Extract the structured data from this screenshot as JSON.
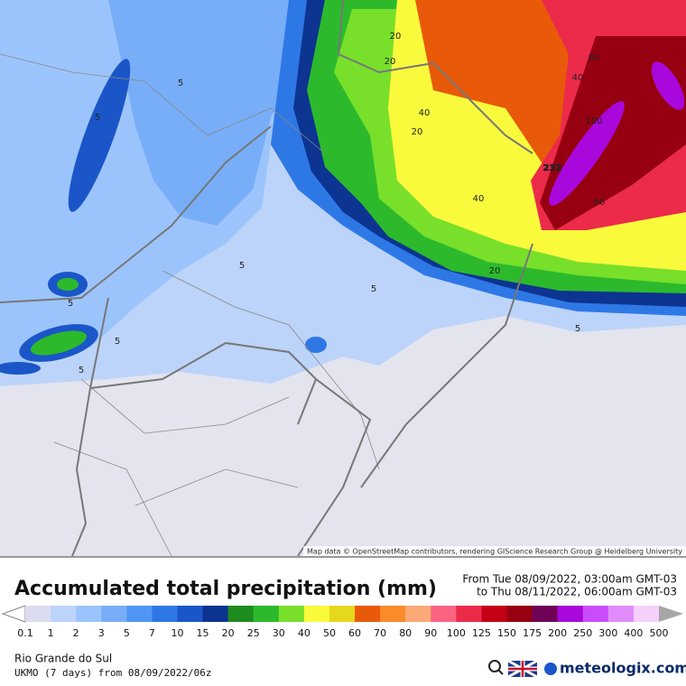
{
  "map": {
    "attribution": "Map data © OpenStreetMap contributors, rendering GIScience Research Group @ Heidelberg University",
    "contour_labels": [
      20,
      20,
      40,
      40,
      80,
      100,
      232,
      60,
      40,
      20,
      5,
      5,
      5,
      5,
      5,
      5,
      5,
      20,
      5
    ]
  },
  "header": {
    "title": "Accumulated total precipitation (mm)",
    "from": "From Tue 08/09/2022, 03:00am GMT-03",
    "to": "to Thu 08/11/2022, 06:00am GMT-03"
  },
  "legend": {
    "ticks": [
      0.1,
      1,
      2,
      3,
      5,
      7,
      10,
      15,
      20,
      25,
      30,
      40,
      50,
      60,
      70,
      80,
      90,
      100,
      125,
      150,
      175,
      200,
      250,
      300,
      400,
      500
    ],
    "colors": [
      "#dcdcf0",
      "#bcd4fa",
      "#9cc4fc",
      "#78aef8",
      "#5096f4",
      "#2e78e6",
      "#1a56c8",
      "#0c3490",
      "#1e8c1e",
      "#2cba2c",
      "#78e02a",
      "#fafa3c",
      "#e6d81c",
      "#e85a0a",
      "#fa8a2a",
      "#fcaa78",
      "#fa6482",
      "#ec2a4a",
      "#c40016",
      "#960010",
      "#6e0058",
      "#a808dc",
      "#c84cfa",
      "#e08cfa",
      "#f4d0fc"
    ],
    "under_color": "#ffffff",
    "over_color": "#a6a6a6"
  },
  "footer": {
    "region": "Rio Grande do Sul",
    "model": "UKMO (7 days) from  08/09/2022/06z",
    "brand": "meteologix.com"
  }
}
